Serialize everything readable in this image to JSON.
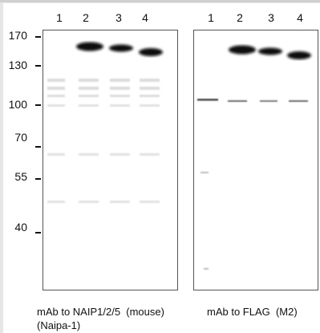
{
  "lanes": [
    "1",
    "2",
    "3",
    "4"
  ],
  "markers": [
    "170",
    "130",
    "100",
    "70",
    "55",
    "40"
  ],
  "panels": [
    {
      "caption_line1": "mAb to NAIP1/2/5  (mouse)",
      "caption_line2": "(Naipa-1)"
    },
    {
      "caption_line1": "mAb to FLAG  (M2)"
    }
  ]
}
